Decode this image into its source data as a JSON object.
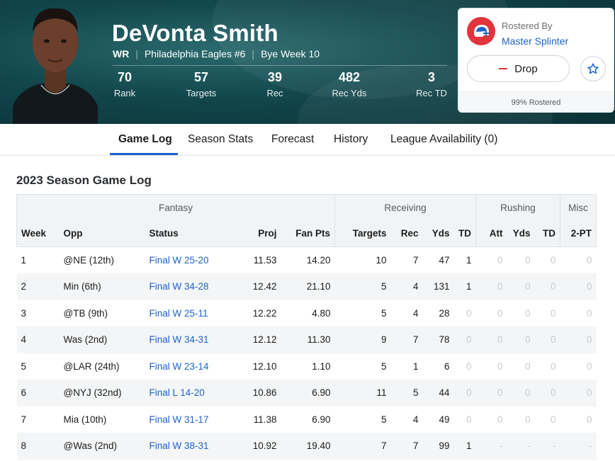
{
  "colors": {
    "accent": "#1d63c9",
    "easy": "#1f9d55",
    "hard": "#e2343c",
    "muted": "#c6cacd"
  },
  "player": {
    "name": "DeVonta Smith",
    "position": "WR",
    "team": "Philadelphia Eagles #6",
    "bye": "Bye Week 10",
    "stats": [
      {
        "value": "70",
        "label": "Rank"
      },
      {
        "value": "57",
        "label": "Targets"
      },
      {
        "value": "39",
        "label": "Rec"
      },
      {
        "value": "482",
        "label": "Rec Yds"
      },
      {
        "value": "3",
        "label": "Rec TD"
      }
    ]
  },
  "roster_card": {
    "label": "Rostered By",
    "owner": "Master Splinter",
    "drop_label": "Drop",
    "star_icon": "star-icon",
    "rostered_pct": "99% Rostered"
  },
  "tabs": [
    {
      "label": "Game Log",
      "active": true
    },
    {
      "label": "Season Stats",
      "active": false
    },
    {
      "label": "Forecast",
      "active": false
    },
    {
      "label": "History",
      "active": false
    },
    {
      "label": "League Availability (0)",
      "active": false
    }
  ],
  "section_title": "2023 Season Game Log",
  "table": {
    "groups": [
      "Fantasy",
      "Receiving",
      "Rushing",
      "Misc"
    ],
    "columns": [
      "Week",
      "Opp",
      "Status",
      "Proj",
      "Fan Pts",
      "Targets",
      "Rec",
      "Yds",
      "TD",
      "Att",
      "Yds",
      "TD",
      "2-PT"
    ],
    "rows": [
      {
        "week": "1",
        "opp": "@NE (12th)",
        "opp_rank": "neutral",
        "status": "Final W 25-20",
        "proj": "11.53",
        "fpts": "14.20",
        "targets": "10",
        "rec": "7",
        "yds": "47",
        "td": "1",
        "ratt": "0",
        "ryds": "0",
        "rtd": "0",
        "twopt": "0"
      },
      {
        "week": "2",
        "opp": "Min (6th)",
        "opp_rank": "win",
        "status": "Final W 34-28",
        "proj": "12.42",
        "fpts": "21.10",
        "targets": "5",
        "rec": "4",
        "yds": "131",
        "td": "1",
        "ratt": "0",
        "ryds": "0",
        "rtd": "0",
        "twopt": "0"
      },
      {
        "week": "3",
        "opp": "@TB (9th)",
        "opp_rank": "win",
        "status": "Final W 25-11",
        "proj": "12.22",
        "fpts": "4.80",
        "targets": "5",
        "rec": "4",
        "yds": "28",
        "td": "0",
        "ratt": "0",
        "ryds": "0",
        "rtd": "0",
        "twopt": "0"
      },
      {
        "week": "4",
        "opp": "Was (2nd)",
        "opp_rank": "win",
        "status": "Final W 34-31",
        "proj": "12.12",
        "fpts": "11.30",
        "targets": "9",
        "rec": "7",
        "yds": "78",
        "td": "0",
        "ratt": "0",
        "ryds": "0",
        "rtd": "0",
        "twopt": "0"
      },
      {
        "week": "5",
        "opp": "@LAR (24th)",
        "opp_rank": "loss",
        "status": "Final W 23-14",
        "proj": "12.10",
        "fpts": "1.10",
        "targets": "5",
        "rec": "1",
        "yds": "6",
        "td": "0",
        "ratt": "0",
        "ryds": "0",
        "rtd": "0",
        "twopt": "0"
      },
      {
        "week": "6",
        "opp": "@NYJ (32nd)",
        "opp_rank": "loss",
        "status": "Final L 14-20",
        "proj": "10.86",
        "fpts": "6.90",
        "targets": "11",
        "rec": "5",
        "yds": "44",
        "td": "0",
        "ratt": "0",
        "ryds": "0",
        "rtd": "0",
        "twopt": "0"
      },
      {
        "week": "7",
        "opp": "Mia (10th)",
        "opp_rank": "win",
        "status": "Final W 31-17",
        "proj": "11.38",
        "fpts": "6.90",
        "targets": "5",
        "rec": "4",
        "yds": "49",
        "td": "0",
        "ratt": "0",
        "ryds": "0",
        "rtd": "0",
        "twopt": "0"
      },
      {
        "week": "8",
        "opp": "@Was (2nd)",
        "opp_rank": "win",
        "status": "Final W 38-31",
        "proj": "10.92",
        "fpts": "19.40",
        "targets": "7",
        "rec": "7",
        "yds": "99",
        "td": "1",
        "ratt": "-",
        "ryds": "-",
        "rtd": "-",
        "twopt": "-"
      }
    ]
  }
}
